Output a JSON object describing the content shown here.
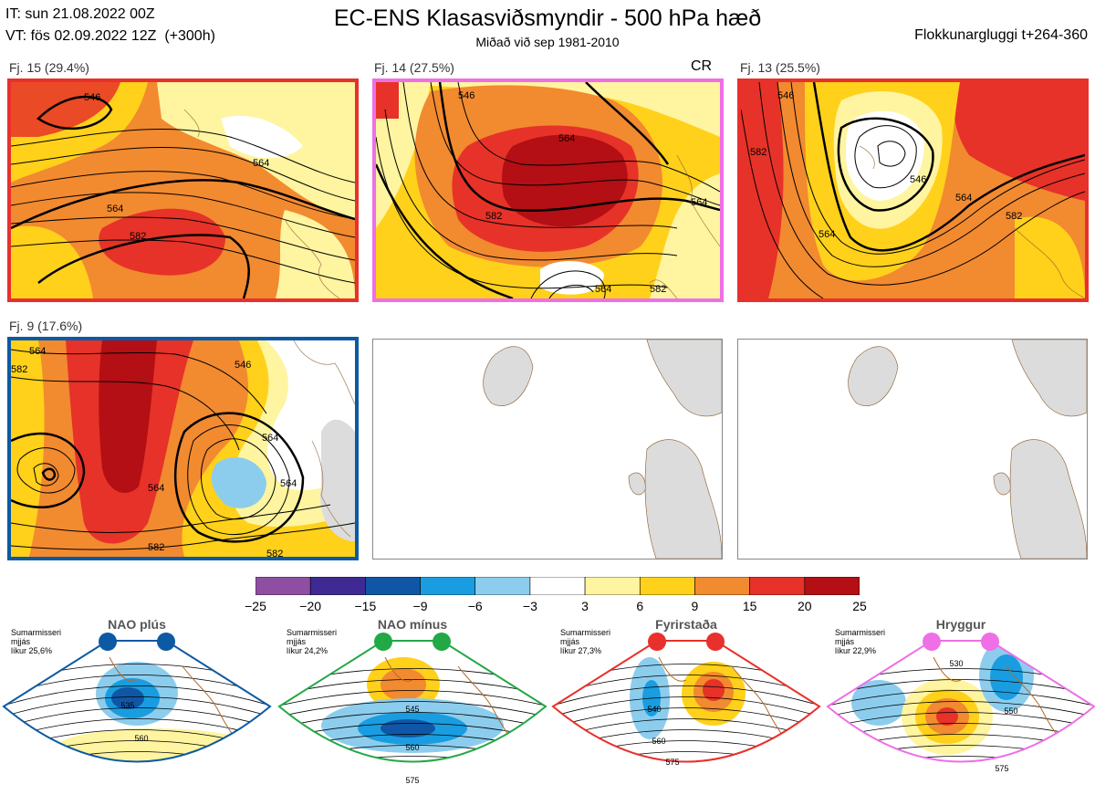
{
  "header": {
    "it_line": "IT: sun 21.08.2022 00Z",
    "vt_line": "VT: fös 02.09.2022 12Z  (+300h)",
    "title": "EC-ENS Klasasviðsmyndir - 500 hPa hæð",
    "subtitle": "Miðað við sep 1981-2010",
    "window": "Flokkunargluggi t+264-360"
  },
  "panels": [
    {
      "label": "Fj. 15 (29.4%)",
      "border": "#e8302c",
      "extra": ""
    },
    {
      "label": "Fj. 14 (27.5%)",
      "border": "#ee6fe6",
      "extra": "CR"
    },
    {
      "label": "Fj. 13 (25.5%)",
      "border": "#e8302c",
      "extra": ""
    },
    {
      "label": "Fj. 9 (17.6%)",
      "border": "#0b5aa3",
      "extra": ""
    }
  ],
  "contour_labels": {
    "p1": [
      "546",
      "564",
      "564",
      "582"
    ],
    "p2": [
      "546",
      "564",
      "564",
      "582",
      "564",
      "582"
    ],
    "p3": [
      "546",
      "564",
      "546",
      "564",
      "582",
      "582"
    ],
    "p4": [
      "564",
      "582",
      "546",
      "564",
      "564",
      "564",
      "582",
      "582"
    ]
  },
  "colorbar": {
    "ticks": [
      "−25",
      "−20",
      "−15",
      "−9",
      "−6",
      "−3",
      "3",
      "6",
      "9",
      "15",
      "20",
      "25"
    ],
    "colors": [
      "#8e4fa3",
      "#3e2a92",
      "#0f57a6",
      "#1a9de0",
      "#8ccdee",
      "#ffffff",
      "#fff4a0",
      "#ffd11a",
      "#f28a30",
      "#e63228",
      "#b30f14"
    ]
  },
  "regimes": [
    {
      "title": "NAO plús",
      "l1": "Sumarmisseri",
      "l2": "mjjás",
      "l3": "líkur 25,6%",
      "color": "#0b5aa3",
      "labels": [
        "535",
        "560"
      ]
    },
    {
      "title": "NAO mínus",
      "l1": "Sumarmisseri",
      "l2": "mjjás",
      "l3": "líkur 24,2%",
      "color": "#22a845",
      "labels": [
        "545",
        "560",
        "575"
      ]
    },
    {
      "title": "Fyrirstaða",
      "l1": "Sumarmisseri",
      "l2": "mjjás",
      "l3": "líkur 27,3%",
      "color": "#e8302c",
      "labels": [
        "540",
        "560",
        "575"
      ]
    },
    {
      "title": "Hryggur",
      "l1": "Sumarmisseri",
      "l2": "mjjás",
      "l3": "líkur 22,9%",
      "color": "#ee6fe6",
      "labels": [
        "530",
        "550",
        "575"
      ]
    }
  ]
}
